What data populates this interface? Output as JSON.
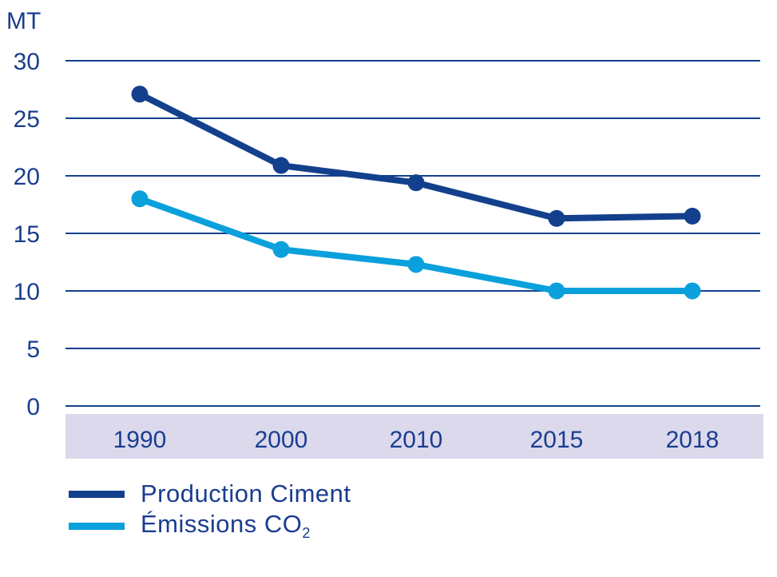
{
  "chart_data": {
    "type": "line",
    "ylabel": "MT",
    "ylim": [
      0,
      30
    ],
    "yticks": [
      "0",
      "5",
      "10",
      "15",
      "20",
      "25",
      "30"
    ],
    "categories": [
      "1990",
      "2000",
      "2010",
      "2015",
      "2018"
    ],
    "grid": true,
    "legend_position": "bottom-left",
    "series": [
      {
        "name": "Production Ciment",
        "color": "#13408c",
        "values": [
          27.1,
          20.9,
          19.4,
          16.3,
          16.5
        ]
      },
      {
        "name": "Émissions CO",
        "name_subscript": "2",
        "color": "#0aa0dc",
        "values": [
          18.0,
          13.6,
          12.3,
          10.0,
          10.0
        ]
      }
    ],
    "colors": {
      "axis_text": "#1a3d8f",
      "gridline": "#13408c",
      "category_band": "#dcd9ed"
    }
  }
}
